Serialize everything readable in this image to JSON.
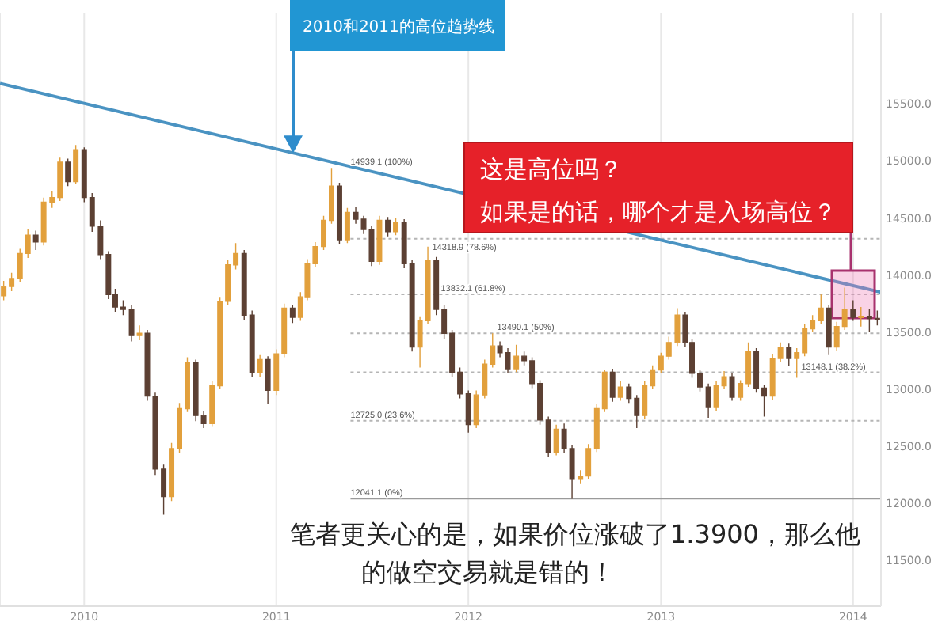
{
  "chart_data": {
    "type": "candlestick",
    "x": [
      "2009-08-01",
      "2009-08-16",
      "2009-09-01",
      "2009-09-16",
      "2009-10-01",
      "2009-10-16",
      "2009-11-01",
      "2009-11-16",
      "2009-12-01",
      "2009-12-16",
      "2010-01-01",
      "2010-01-16",
      "2010-02-01",
      "2010-02-16",
      "2010-03-01",
      "2010-03-16",
      "2010-04-01",
      "2010-04-16",
      "2010-05-01",
      "2010-05-16",
      "2010-06-01",
      "2010-06-16",
      "2010-07-01",
      "2010-07-16",
      "2010-08-01",
      "2010-08-16",
      "2010-09-01",
      "2010-09-16",
      "2010-10-01",
      "2010-10-16",
      "2010-11-01",
      "2010-11-16",
      "2010-12-01",
      "2010-12-16",
      "2011-01-01",
      "2011-01-16",
      "2011-02-01",
      "2011-02-16",
      "2011-03-01",
      "2011-03-16",
      "2011-04-01",
      "2011-04-16",
      "2011-05-01",
      "2011-05-16",
      "2011-06-01",
      "2011-06-16",
      "2011-07-01",
      "2011-07-16",
      "2011-08-01",
      "2011-08-16",
      "2011-09-01",
      "2011-09-16",
      "2011-10-01",
      "2011-10-16",
      "2011-11-01",
      "2011-11-16",
      "2011-12-01",
      "2011-12-16",
      "2012-01-01",
      "2012-01-16",
      "2012-02-01",
      "2012-02-16",
      "2012-03-01",
      "2012-03-16",
      "2012-04-01",
      "2012-04-16",
      "2012-05-01",
      "2012-05-16",
      "2012-06-01",
      "2012-06-16",
      "2012-07-01",
      "2012-07-16",
      "2012-08-01",
      "2012-08-16",
      "2012-09-01",
      "2012-09-16",
      "2012-10-01",
      "2012-10-16",
      "2012-11-01",
      "2012-11-16",
      "2012-12-01",
      "2012-12-16",
      "2013-01-01",
      "2013-01-16",
      "2013-02-01",
      "2013-02-16",
      "2013-03-01",
      "2013-03-16",
      "2013-04-01",
      "2013-04-16",
      "2013-05-01",
      "2013-05-16",
      "2013-06-01",
      "2013-06-16",
      "2013-07-01",
      "2013-07-16",
      "2013-08-01",
      "2013-08-16",
      "2013-09-01",
      "2013-09-16",
      "2013-10-01",
      "2013-10-16",
      "2013-11-01",
      "2013-11-16",
      "2013-12-01",
      "2013-12-16",
      "2014-01-01",
      "2014-01-16",
      "2014-02-01",
      "2014-02-16"
    ],
    "ohlc": [
      [
        13820,
        13950,
        13780,
        13900
      ],
      [
        13900,
        14020,
        13860,
        13970
      ],
      [
        13970,
        14230,
        13940,
        14190
      ],
      [
        14190,
        14400,
        14150,
        14350
      ],
      [
        14350,
        14390,
        14220,
        14290
      ],
      [
        14290,
        14680,
        14260,
        14640
      ],
      [
        14640,
        14740,
        14590,
        14680
      ],
      [
        14680,
        15030,
        14650,
        14990
      ],
      [
        14990,
        15020,
        14780,
        14820
      ],
      [
        14820,
        15140,
        14800,
        15100
      ],
      [
        15100,
        15120,
        14640,
        14680
      ],
      [
        14680,
        14720,
        14380,
        14430
      ],
      [
        14430,
        14480,
        14140,
        14180
      ],
      [
        14180,
        14210,
        13790,
        13830
      ],
      [
        13830,
        13880,
        13680,
        13720
      ],
      [
        13720,
        13780,
        13650,
        13700
      ],
      [
        13700,
        13740,
        13420,
        13470
      ],
      [
        13470,
        13560,
        13430,
        13490
      ],
      [
        13490,
        13520,
        12900,
        12940
      ],
      [
        12940,
        12970,
        12250,
        12300
      ],
      [
        12300,
        12340,
        11900,
        12060
      ],
      [
        12060,
        12530,
        12020,
        12480
      ],
      [
        12480,
        12880,
        12440,
        12830
      ],
      [
        12830,
        13280,
        12800,
        13230
      ],
      [
        13230,
        13260,
        12720,
        12770
      ],
      [
        12770,
        12810,
        12660,
        12700
      ],
      [
        12700,
        13070,
        12670,
        13030
      ],
      [
        13030,
        13810,
        13000,
        13770
      ],
      [
        13770,
        14130,
        13740,
        14090
      ],
      [
        14090,
        14280,
        14050,
        14190
      ],
      [
        14190,
        14220,
        13610,
        13650
      ],
      [
        13650,
        13690,
        13110,
        13150
      ],
      [
        13150,
        13300,
        13110,
        13260
      ],
      [
        13260,
        13290,
        12870,
        12990
      ],
      [
        12990,
        13350,
        12950,
        13310
      ],
      [
        13310,
        13750,
        13280,
        13710
      ],
      [
        13710,
        13740,
        13580,
        13630
      ],
      [
        13630,
        13850,
        13600,
        13810
      ],
      [
        13810,
        14140,
        13780,
        14100
      ],
      [
        14100,
        14290,
        14070,
        14250
      ],
      [
        14250,
        14520,
        14220,
        14480
      ],
      [
        14480,
        14940,
        14450,
        14780
      ],
      [
        14780,
        14810,
        14270,
        14310
      ],
      [
        14310,
        14590,
        14280,
        14550
      ],
      [
        14550,
        14600,
        14450,
        14490
      ],
      [
        14490,
        14520,
        14360,
        14400
      ],
      [
        14400,
        14430,
        14080,
        14120
      ],
      [
        14120,
        14520,
        14090,
        14480
      ],
      [
        14480,
        14510,
        14340,
        14380
      ],
      [
        14380,
        14500,
        14350,
        14460
      ],
      [
        14460,
        14490,
        14060,
        14100
      ],
      [
        14100,
        14130,
        13330,
        13370
      ],
      [
        13370,
        13640,
        13190,
        13600
      ],
      [
        13600,
        14250,
        13570,
        14130
      ],
      [
        14130,
        14160,
        13650,
        13700
      ],
      [
        13700,
        13740,
        13440,
        13490
      ],
      [
        13490,
        13520,
        13110,
        13150
      ],
      [
        13150,
        13190,
        12920,
        12960
      ],
      [
        12960,
        12990,
        12620,
        12690
      ],
      [
        12690,
        12990,
        12660,
        12950
      ],
      [
        12950,
        13260,
        12920,
        13220
      ],
      [
        13220,
        13490,
        13190,
        13380
      ],
      [
        13380,
        13420,
        13280,
        13320
      ],
      [
        13320,
        13360,
        13140,
        13180
      ],
      [
        13180,
        13390,
        13150,
        13290
      ],
      [
        13290,
        13330,
        13210,
        13250
      ],
      [
        13250,
        13280,
        13010,
        13050
      ],
      [
        13050,
        13080,
        12690,
        12730
      ],
      [
        12730,
        12760,
        12410,
        12450
      ],
      [
        12450,
        12690,
        12420,
        12650
      ],
      [
        12650,
        12700,
        12440,
        12480
      ],
      [
        12480,
        12510,
        12040,
        12210
      ],
      [
        12210,
        12290,
        12170,
        12240
      ],
      [
        12240,
        12520,
        12210,
        12480
      ],
      [
        12480,
        12870,
        12450,
        12830
      ],
      [
        12830,
        13170,
        12800,
        13150
      ],
      [
        13150,
        13180,
        12890,
        12930
      ],
      [
        12930,
        13070,
        12900,
        13020
      ],
      [
        13020,
        13050,
        12880,
        12920
      ],
      [
        12920,
        12950,
        12660,
        12770
      ],
      [
        12770,
        13070,
        12740,
        13030
      ],
      [
        13030,
        13210,
        13000,
        13170
      ],
      [
        13170,
        13320,
        13140,
        13290
      ],
      [
        13290,
        13460,
        13260,
        13410
      ],
      [
        13410,
        13710,
        13380,
        13650
      ],
      [
        13650,
        13680,
        13370,
        13410
      ],
      [
        13410,
        13440,
        13100,
        13140
      ],
      [
        13140,
        13170,
        12980,
        13020
      ],
      [
        13020,
        13050,
        12750,
        12840
      ],
      [
        12840,
        13070,
        12810,
        13030
      ],
      [
        13030,
        13160,
        13000,
        13110
      ],
      [
        13110,
        13140,
        12900,
        12930
      ],
      [
        12930,
        13080,
        12900,
        13050
      ],
      [
        13050,
        13410,
        13020,
        13330
      ],
      [
        13330,
        13360,
        12970,
        13010
      ],
      [
        13010,
        13040,
        12760,
        12940
      ],
      [
        12940,
        13310,
        12910,
        13270
      ],
      [
        13270,
        13410,
        13240,
        13370
      ],
      [
        13370,
        13400,
        13200,
        13270
      ],
      [
        13270,
        13360,
        13100,
        13320
      ],
      [
        13320,
        13570,
        13290,
        13530
      ],
      [
        13530,
        13650,
        13500,
        13600
      ],
      [
        13600,
        13830,
        13570,
        13710
      ],
      [
        13710,
        13740,
        13300,
        13370
      ],
      [
        13370,
        13590,
        13340,
        13550
      ],
      [
        13550,
        13890,
        13520,
        13700
      ],
      [
        13700,
        13780,
        13600,
        13630
      ],
      [
        13630,
        13720,
        13550,
        13640
      ],
      [
        13640,
        13700,
        13500,
        13620
      ],
      [
        13620,
        13690,
        13560,
        13610
      ]
    ],
    "colors": [
      "#e2a03c",
      "#e2a03c",
      "#e2a03c",
      "#e2a03c",
      "#5c4033",
      "#e2a03c",
      "#e2a03c",
      "#e2a03c",
      "#5c4033",
      "#e2a03c",
      "#5c4033",
      "#5c4033",
      "#5c4033",
      "#5c4033",
      "#5c4033",
      "#5c4033",
      "#5c4033",
      "#e2a03c",
      "#5c4033",
      "#5c4033",
      "#5c4033",
      "#e2a03c",
      "#e2a03c",
      "#e2a03c",
      "#5c4033",
      "#5c4033",
      "#e2a03c",
      "#e2a03c",
      "#e2a03c",
      "#e2a03c",
      "#5c4033",
      "#5c4033",
      "#e2a03c",
      "#5c4033",
      "#e2a03c",
      "#e2a03c",
      "#5c4033",
      "#e2a03c",
      "#e2a03c",
      "#e2a03c",
      "#e2a03c",
      "#e2a03c",
      "#5c4033",
      "#e2a03c",
      "#5c4033",
      "#5c4033",
      "#5c4033",
      "#e2a03c",
      "#5c4033",
      "#e2a03c",
      "#5c4033",
      "#5c4033",
      "#e2a03c",
      "#e2a03c",
      "#5c4033",
      "#5c4033",
      "#5c4033",
      "#5c4033",
      "#5c4033",
      "#e2a03c",
      "#e2a03c",
      "#e2a03c",
      "#5c4033",
      "#5c4033",
      "#e2a03c",
      "#5c4033",
      "#5c4033",
      "#5c4033",
      "#5c4033",
      "#e2a03c",
      "#5c4033",
      "#5c4033",
      "#e2a03c",
      "#e2a03c",
      "#e2a03c",
      "#e2a03c",
      "#5c4033",
      "#e2a03c",
      "#5c4033",
      "#5c4033",
      "#e2a03c",
      "#e2a03c",
      "#e2a03c",
      "#e2a03c",
      "#e2a03c",
      "#5c4033",
      "#5c4033",
      "#5c4033",
      "#5c4033",
      "#e2a03c",
      "#e2a03c",
      "#5c4033",
      "#e2a03c",
      "#e2a03c",
      "#5c4033",
      "#5c4033",
      "#e2a03c",
      "#e2a03c",
      "#5c4033",
      "#e2a03c",
      "#e2a03c",
      "#e2a03c",
      "#e2a03c",
      "#5c4033",
      "#e2a03c",
      "#e2a03c",
      "#5c4033",
      "#e2a03c",
      "#5c4033",
      "#5c4033"
    ],
    "series": [
      {
        "type": "line",
        "x": [
          "2009-07-25",
          "2014-02-23"
        ],
        "values": [
          15680,
          13850
        ],
        "color": "#4a93c2"
      }
    ],
    "xlim": [
      "2009-07-25",
      "2014-02-23"
    ],
    "xticks": [
      "2010",
      "2011",
      "2012",
      "2013",
      "2014"
    ],
    "ylim": [
      11100,
      16300
    ],
    "yticks": [
      {
        "value": 11500,
        "label": "11500.0"
      },
      {
        "value": 12000,
        "label": "12000.0"
      },
      {
        "value": 12500,
        "label": "12500.0"
      },
      {
        "value": 13000,
        "label": "13000.0"
      },
      {
        "value": 13500,
        "label": "13500.0"
      },
      {
        "value": 14000,
        "label": "14000.0"
      },
      {
        "value": 14500,
        "label": "14500.0"
      },
      {
        "value": 15000,
        "label": "15000.0"
      },
      {
        "value": 15500,
        "label": "15500.0"
      }
    ],
    "grid": "x",
    "ref_lines": [
      {
        "axis": "y",
        "value": 14318.9,
        "label": "14318.9 (78.6%)",
        "color": "#b5b5b5",
        "line_style": "dotted"
      },
      {
        "axis": "y",
        "value": 13832.1,
        "label": "13832.1 (61.8%)",
        "color": "#b5b5b5",
        "line_style": "dotted"
      },
      {
        "axis": "y",
        "value": 13490.1,
        "label": "13490.1 (50%)",
        "color": "#b5b5b5",
        "line_style": "dotted"
      },
      {
        "axis": "y",
        "value": 13148.1,
        "label": "13148.1 (38.2%)",
        "color": "#b5b5b5",
        "line_style": "dotted"
      },
      {
        "axis": "y",
        "value": 12725.0,
        "label": "12725.0 (23.6%)",
        "color": "#b5b5b5",
        "line_style": "dotted"
      },
      {
        "axis": "y",
        "value": 12041.1,
        "label": "12041.1 (0%)",
        "color": "#9a9a9a",
        "line_style": "solid"
      }
    ],
    "annotations": [
      {
        "text": "14939.1 (100%)",
        "x": "2011-05-16",
        "y": 14940
      },
      "2010和2011的高位趋势线",
      "这是高位吗？",
      "如果是的话，哪个才是入场高位？",
      "笔者更关心的是，如果价位涨破了1.3900，那么他的做空交易就是错的！"
    ]
  }
}
